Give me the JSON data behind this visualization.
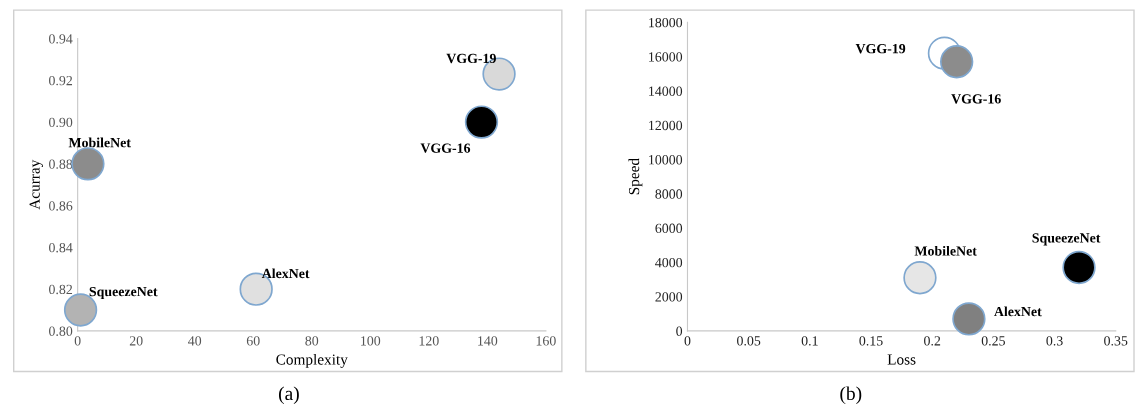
{
  "chart_data": [
    {
      "type": "scatter",
      "xlabel": "Complexity",
      "ylabel": "Acurray",
      "xlim": [
        0,
        160
      ],
      "xticks": [
        0,
        20,
        40,
        60,
        80,
        100,
        120,
        140,
        160
      ],
      "ylim": [
        0.8,
        0.94
      ],
      "yticks": [
        {
          "value": 0.8,
          "label": "0.80"
        },
        {
          "value": 0.82,
          "label": "0.82"
        },
        {
          "value": 0.84,
          "label": "0.84"
        },
        {
          "value": 0.86,
          "label": "0.86"
        },
        {
          "value": 0.88,
          "label": "0.88"
        },
        {
          "value": 0.9,
          "label": "0.90"
        },
        {
          "value": 0.92,
          "label": "0.92"
        },
        {
          "value": 0.94,
          "label": "0.94"
        }
      ],
      "grid": false,
      "legend": false,
      "marker": "circle",
      "annotations": [
        "(a)"
      ],
      "series": [
        {
          "name": "VGG-19",
          "color": "#d9d9d9",
          "x": [
            144
          ],
          "values": [
            0.923
          ]
        },
        {
          "name": "VGG-16",
          "color": "#000000",
          "x": [
            138
          ],
          "values": [
            0.9
          ]
        },
        {
          "name": "MobileNet",
          "color": "#8c8c8c",
          "x": [
            3.5
          ],
          "values": [
            0.88
          ]
        },
        {
          "name": "AlexNet",
          "color": "#e0e0e0",
          "x": [
            61
          ],
          "values": [
            0.82
          ]
        },
        {
          "name": "SqueezeNet",
          "color": "#b3b3b3",
          "x": [
            1
          ],
          "values": [
            0.81
          ]
        }
      ]
    },
    {
      "type": "scatter",
      "xlabel": "Loss",
      "ylabel": "Speed",
      "xlim": [
        0,
        0.35
      ],
      "xticks": [
        0,
        0.05,
        0.1,
        0.15,
        0.2,
        0.25,
        0.3,
        0.35
      ],
      "ylim": [
        0,
        18000
      ],
      "yticks": [
        0,
        2000,
        4000,
        6000,
        8000,
        10000,
        12000,
        14000,
        16000,
        18000
      ],
      "grid": false,
      "legend": false,
      "marker": "circle",
      "annotations": [
        "(b)"
      ],
      "series": [
        {
          "name": "VGG-19",
          "color": "#ffffff",
          "x": [
            0.21
          ],
          "values": [
            16200
          ]
        },
        {
          "name": "VGG-16",
          "color": "#8c8c8c",
          "x": [
            0.22
          ],
          "values": [
            15700
          ]
        },
        {
          "name": "MobileNet",
          "color": "#e6e6e6",
          "x": [
            0.19
          ],
          "values": [
            3100
          ]
        },
        {
          "name": "AlexNet",
          "color": "#808080",
          "x": [
            0.23
          ],
          "values": [
            700
          ]
        },
        {
          "name": "SqueezeNet",
          "color": "#000000",
          "x": [
            0.32
          ],
          "values": [
            3700
          ]
        }
      ]
    }
  ]
}
